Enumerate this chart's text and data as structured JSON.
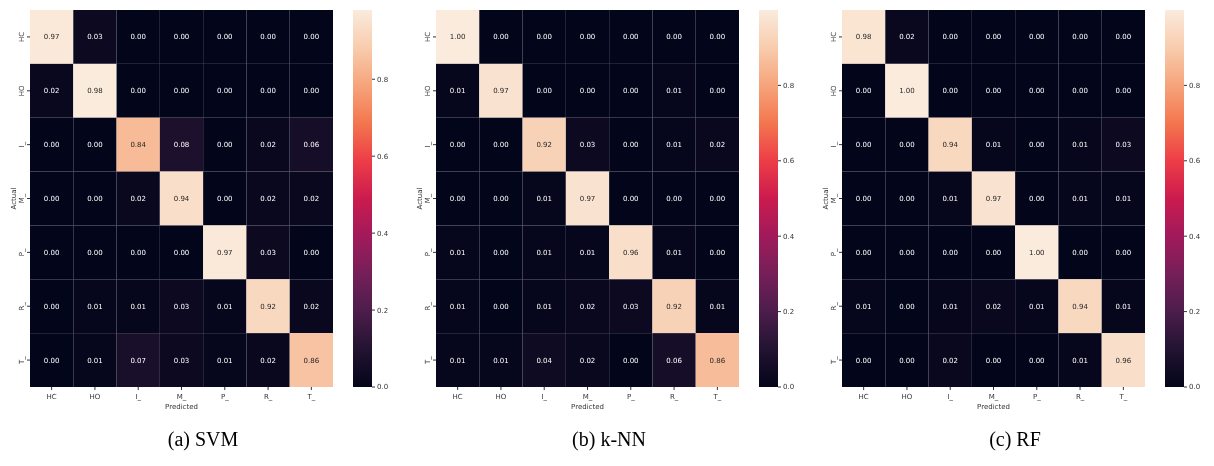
{
  "chart_data": [
    {
      "type": "heatmap",
      "title": "(a) SVM",
      "xlabel": "Predicted",
      "ylabel": "Actual",
      "categories": [
        "HC",
        "HO",
        "I_",
        "M_",
        "P_",
        "R_",
        "T_"
      ],
      "y_categories": [
        "HC",
        "HO",
        "I_",
        "M_",
        "P_",
        "R_",
        "T_"
      ],
      "cells": [
        [
          0.97,
          0.03,
          0,
          0,
          0,
          0,
          0
        ],
        [
          0.02,
          0.98,
          0,
          0,
          0,
          0,
          0
        ],
        [
          0,
          0,
          0.84,
          0.08,
          0,
          0.02,
          0.06
        ],
        [
          0,
          0,
          0.02,
          0.94,
          0,
          0.02,
          0.02
        ],
        [
          0,
          0,
          0,
          0,
          0.97,
          0.03,
          0
        ],
        [
          0,
          0.01,
          0.01,
          0.03,
          0.01,
          0.92,
          0.02
        ],
        [
          0,
          0.01,
          0.07,
          0.03,
          0.01,
          0.02,
          0.86
        ]
      ],
      "cell_labels": [
        [
          "0.97",
          "0.03",
          "0.00",
          "0.00",
          "0.00",
          "0.00",
          "0.00"
        ],
        [
          "0.02",
          "0.98",
          "0.00",
          "0.00",
          "0.00",
          "0.00",
          "0.00"
        ],
        [
          "0.00",
          "0.00",
          "0.84",
          "0.08",
          "0.00",
          "0.02",
          "0.06"
        ],
        [
          "0.00",
          "0.00",
          "0.02",
          "0.94",
          "0.00",
          "0.02",
          "0.02"
        ],
        [
          "0.00",
          "0.00",
          "0.00",
          "0.00",
          "0.97",
          "0.03",
          "0.00"
        ],
        [
          "0.00",
          "0.01",
          "0.01",
          "0.03",
          "0.01",
          "0.92",
          "0.02"
        ],
        [
          "0.00",
          "0.01",
          "0.07",
          "0.03",
          "0.01",
          "0.02",
          "0.86"
        ]
      ],
      "clim": [
        0,
        0.98
      ],
      "cticks": [
        {
          "value": 0,
          "label": "0.0"
        },
        {
          "value": 0.2,
          "label": "0.2"
        },
        {
          "value": 0.4,
          "label": "0.4"
        },
        {
          "value": 0.6,
          "label": "0.6"
        },
        {
          "value": 0.8,
          "label": "0.8"
        }
      ]
    },
    {
      "type": "heatmap",
      "title": "(b) k-NN",
      "xlabel": "Predicted",
      "ylabel": "Actual",
      "categories": [
        "HC",
        "HO",
        "I_",
        "M_",
        "P_",
        "R_",
        "T_"
      ],
      "y_categories": [
        "HC",
        "HO",
        "I_",
        "M_",
        "P_",
        "R_",
        "T_"
      ],
      "cells": [
        [
          1,
          0,
          0,
          0,
          0,
          0,
          0
        ],
        [
          0.01,
          0.97,
          0,
          0,
          0,
          0.01,
          0
        ],
        [
          0,
          0,
          0.92,
          0.03,
          0,
          0.01,
          0.02
        ],
        [
          0,
          0,
          0.01,
          0.97,
          0,
          0,
          0
        ],
        [
          0.01,
          0,
          0.01,
          0.01,
          0.96,
          0.01,
          0
        ],
        [
          0.01,
          0,
          0.01,
          0.02,
          0.03,
          0.92,
          0.01
        ],
        [
          0.01,
          0.01,
          0.04,
          0.02,
          0,
          0.06,
          0.86
        ]
      ],
      "cell_labels": [
        [
          "1.00",
          "0.00",
          "0.00",
          "0.00",
          "0.00",
          "0.00",
          "0.00"
        ],
        [
          "0.01",
          "0.97",
          "0.00",
          "0.00",
          "0.00",
          "0.01",
          "0.00"
        ],
        [
          "0.00",
          "0.00",
          "0.92",
          "0.03",
          "0.00",
          "0.01",
          "0.02"
        ],
        [
          "0.00",
          "0.00",
          "0.01",
          "0.97",
          "0.00",
          "0.00",
          "0.00"
        ],
        [
          "0.01",
          "0.00",
          "0.01",
          "0.01",
          "0.96",
          "0.01",
          "0.00"
        ],
        [
          "0.01",
          "0.00",
          "0.01",
          "0.02",
          "0.03",
          "0.92",
          "0.01"
        ],
        [
          "0.01",
          "0.01",
          "0.04",
          "0.02",
          "0.00",
          "0.06",
          "0.86"
        ]
      ],
      "clim": [
        0,
        1
      ],
      "cticks": [
        {
          "value": 0,
          "label": "0.0"
        },
        {
          "value": 0.2,
          "label": "0.2"
        },
        {
          "value": 0.4,
          "label": "0.4"
        },
        {
          "value": 0.6,
          "label": "0.6"
        },
        {
          "value": 0.8,
          "label": "0.8"
        }
      ]
    },
    {
      "type": "heatmap",
      "title": "(c) RF",
      "xlabel": "Predicted",
      "ylabel": "Actual",
      "categories": [
        "HC",
        "HO",
        "I_",
        "M_",
        "P_",
        "R_",
        "T_"
      ],
      "y_categories": [
        "HC",
        "HO",
        "I_",
        "M_",
        "P_",
        "R_",
        "T_"
      ],
      "cells": [
        [
          0.98,
          0.02,
          0,
          0,
          0,
          0,
          0
        ],
        [
          0,
          1,
          0,
          0,
          0,
          0,
          0
        ],
        [
          0,
          0,
          0.94,
          0.01,
          0,
          0.01,
          0.03
        ],
        [
          0,
          0,
          0.01,
          0.97,
          0,
          0.01,
          0.01
        ],
        [
          0,
          0,
          0,
          0,
          1,
          0,
          0
        ],
        [
          0.01,
          0,
          0.01,
          0.02,
          0.01,
          0.94,
          0.01
        ],
        [
          0,
          0,
          0.02,
          0,
          0,
          0.01,
          0.96
        ]
      ],
      "cell_labels": [
        [
          "0.98",
          "0.02",
          "0.00",
          "0.00",
          "0.00",
          "0.00",
          "0.00"
        ],
        [
          "0.00",
          "1.00",
          "0.00",
          "0.00",
          "0.00",
          "0.00",
          "0.00"
        ],
        [
          "0.00",
          "0.00",
          "0.94",
          "0.01",
          "0.00",
          "0.01",
          "0.03"
        ],
        [
          "0.00",
          "0.00",
          "0.01",
          "0.97",
          "0.00",
          "0.01",
          "0.01"
        ],
        [
          "0.00",
          "0.00",
          "0.00",
          "0.00",
          "1.00",
          "0.00",
          "0.00"
        ],
        [
          "0.01",
          "0.00",
          "0.01",
          "0.02",
          "0.01",
          "0.94",
          "0.01"
        ],
        [
          "0.00",
          "0.00",
          "0.02",
          "0.00",
          "0.00",
          "0.01",
          "0.96"
        ]
      ],
      "clim": [
        0,
        1
      ],
      "cticks": [
        {
          "value": 0,
          "label": "0.0"
        },
        {
          "value": 0.2,
          "label": "0.2"
        },
        {
          "value": 0.4,
          "label": "0.4"
        },
        {
          "value": 0.6,
          "label": "0.6"
        },
        {
          "value": 0.8,
          "label": "0.8"
        }
      ]
    }
  ]
}
